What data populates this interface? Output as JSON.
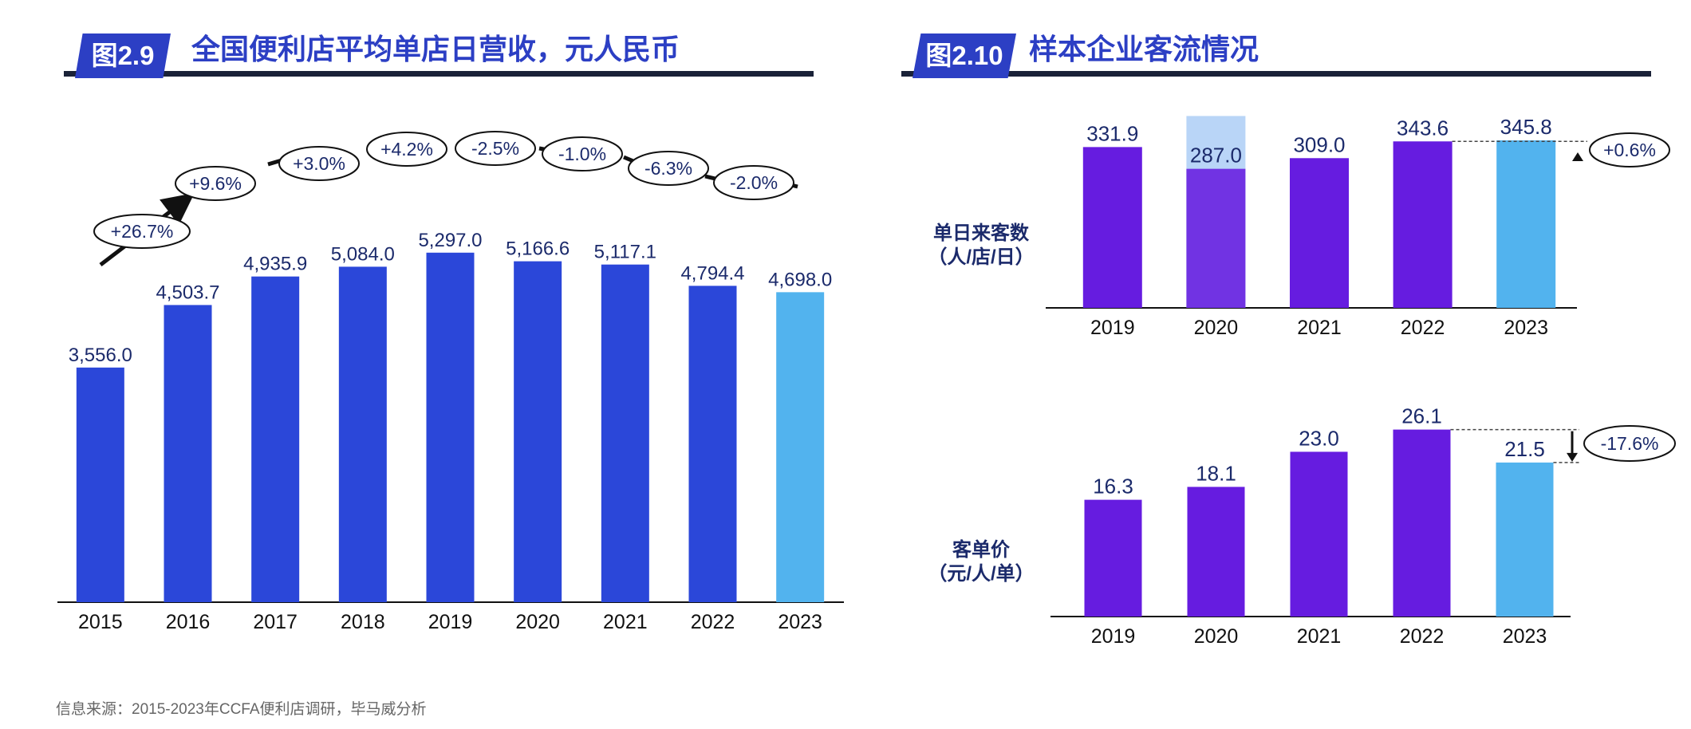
{
  "left_panel": {
    "tag": "图2.9",
    "title": "全国便利店平均单店日营收，元人民币"
  },
  "right_panel": {
    "tag": "图2.10",
    "title": "样本企业客流情况"
  },
  "source": "信息来源：2015-2023年CCFA便利店调研，毕马威分析",
  "colors": {
    "bar_blue": "#2b47d9",
    "bar_light_blue": "#52b3ee",
    "bar_purple": "#661ce0",
    "bar_pale_blue": "#b9d5f7",
    "label_navy": "#1b2a6b",
    "title_blue": "#2c3fc4"
  },
  "chart_data": [
    {
      "type": "bar",
      "categories": [
        "2015",
        "2016",
        "2017",
        "2018",
        "2019",
        "2020",
        "2021",
        "2022",
        "2023"
      ],
      "values": [
        3556.0,
        4503.7,
        4935.9,
        5084.0,
        5297.0,
        5166.6,
        5117.1,
        4794.4,
        4698.0
      ],
      "value_labels": [
        "3,556.0",
        "4,503.7",
        "4,935.9",
        "5,084.0",
        "5,297.0",
        "5,166.6",
        "5,117.1",
        "4,794.4",
        "4,698.0"
      ],
      "growth_labels": [
        "+26.7%",
        "+9.6%",
        "+3.0%",
        "+4.2%",
        "-2.5%",
        "-1.0%",
        "-6.3%",
        "-2.0%"
      ],
      "highlight_last": true,
      "ylim": [
        0,
        5500
      ],
      "grid": false
    },
    {
      "type": "bar",
      "ylabel": "单日来客数\n（人/店/日）",
      "categories": [
        "2019",
        "2020",
        "2021",
        "2022",
        "2023"
      ],
      "values": [
        331.9,
        287.0,
        309.0,
        343.6,
        345.8
      ],
      "value_labels": [
        "331.9",
        "287.0",
        "309.0",
        "343.6",
        "345.8"
      ],
      "overlay_value_2020": 396,
      "change_label": "+0.6%",
      "highlight_last": true,
      "ylim": [
        0,
        400
      ],
      "grid": false
    },
    {
      "type": "bar",
      "ylabel": "客单价\n（元/人/单）",
      "categories": [
        "2019",
        "2020",
        "2021",
        "2022",
        "2023"
      ],
      "values": [
        16.3,
        18.1,
        23.0,
        26.1,
        21.5
      ],
      "value_labels": [
        "16.3",
        "18.1",
        "23.0",
        "26.1",
        "21.5"
      ],
      "change_label": "-17.6%",
      "highlight_last": true,
      "ylim": [
        0,
        26.5
      ],
      "grid": false
    }
  ]
}
